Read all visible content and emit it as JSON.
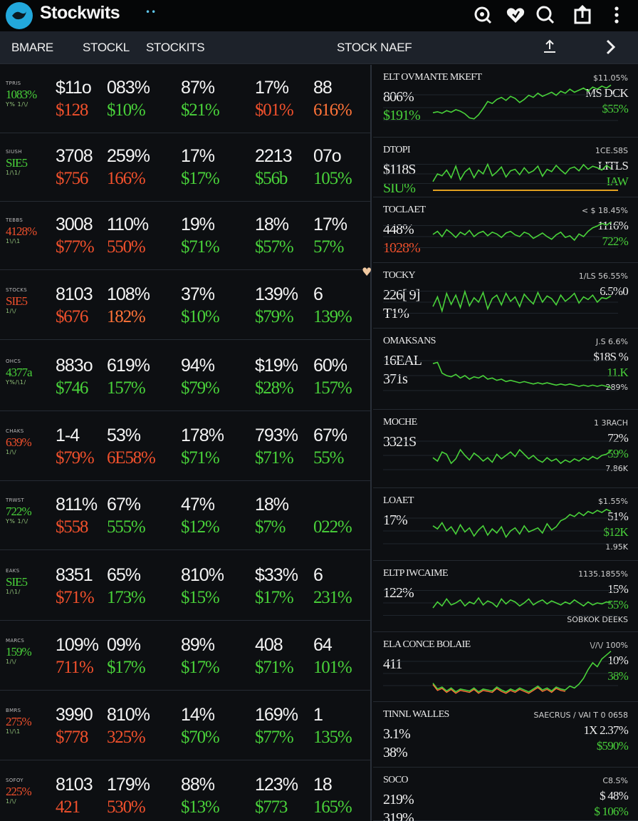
{
  "app": {
    "title": "Stockwits",
    "dots": "••"
  },
  "colors": {
    "positive": "#49d23a",
    "negative": "#f0502c",
    "orange": "#ff7338",
    "accent": "#22a8dc",
    "background": "#0d0f12"
  },
  "top_icons": [
    "search-refresh-icon",
    "heart-icon",
    "search-icon",
    "share-icon",
    "more-vertical-icon"
  ],
  "nav": {
    "tabs": [
      "BMARE",
      "STOCKL",
      "STOCKITS",
      "STOCK NAEF"
    ],
    "icons": [
      "upload-icon",
      "chevron-right-icon"
    ]
  },
  "grid": {
    "rows": [
      {
        "name": "TPRIS",
        "chg": "1083%",
        "chg_tone": "pos",
        "bars": "Y% 1/\\/",
        "cells": [
          {
            "v1": "$11o",
            "v2": "$128",
            "tone": "neg"
          },
          {
            "v1": "083%",
            "v2": "$10%",
            "tone": "pos"
          },
          {
            "v1": "87%",
            "v2": "$21%",
            "tone": "pos"
          },
          {
            "v1": "17%",
            "v2": "$01%",
            "tone": "neg"
          },
          {
            "v1": "88",
            "v2": "616%",
            "tone": "orange"
          }
        ]
      },
      {
        "name": "SIUSH",
        "chg": "SIE5",
        "chg_tone": "pos",
        "bars": "1/\\1/",
        "cells": [
          {
            "v1": "3708",
            "v2": "$756",
            "tone": "neg"
          },
          {
            "v1": "259%",
            "v2": "166%",
            "tone": "neg"
          },
          {
            "v1": "17%",
            "v2": "$17%",
            "tone": "pos"
          },
          {
            "v1": "2213",
            "v2": "$56b",
            "tone": "pos"
          },
          {
            "v1": "07o",
            "v2": "105%",
            "tone": "pos"
          }
        ]
      },
      {
        "name": "TEBBS",
        "chg": "4128%",
        "chg_tone": "neg",
        "bars": "1\\/\\1",
        "cells": [
          {
            "v1": "3008",
            "v2": "$77%",
            "tone": "neg"
          },
          {
            "v1": "110%",
            "v2": "550%",
            "tone": "neg"
          },
          {
            "v1": "19%",
            "v2": "$71%",
            "tone": "pos"
          },
          {
            "v1": "18%",
            "v2": "$57%",
            "tone": "pos"
          },
          {
            "v1": "17%",
            "v2": "57%",
            "tone": "pos"
          }
        ]
      },
      {
        "name": "STOCKS",
        "chg": "SIE5",
        "chg_tone": "neg",
        "bars": "1/\\/",
        "cells": [
          {
            "v1": "8103",
            "v2": "$676",
            "tone": "neg"
          },
          {
            "v1": "108%",
            "v2": "182%",
            "tone": "orange"
          },
          {
            "v1": "37%",
            "v2": "$10%",
            "tone": "pos"
          },
          {
            "v1": "139%",
            "v2": "$79%",
            "tone": "pos"
          },
          {
            "v1": "6",
            "v2": "139%",
            "tone": "pos"
          }
        ]
      },
      {
        "name": "OHCS",
        "chg": "4377a",
        "chg_tone": "pos",
        "bars": "Y%/\\1/",
        "cells": [
          {
            "v1": "883o",
            "v2": "$746",
            "tone": "pos"
          },
          {
            "v1": "619%",
            "v2": "157%",
            "tone": "pos"
          },
          {
            "v1": "94%",
            "v2": "$79%",
            "tone": "pos"
          },
          {
            "v1": "$19%",
            "v2": "$28%",
            "tone": "pos"
          },
          {
            "v1": "60%",
            "v2": "157%",
            "tone": "pos"
          }
        ]
      },
      {
        "name": "CHAKS",
        "chg": "639%",
        "chg_tone": "neg",
        "bars": "1/\\/",
        "cells": [
          {
            "v1": "1-4",
            "v2": "$79%",
            "tone": "neg"
          },
          {
            "v1": "53%",
            "v2": "6E58%",
            "tone": "neg"
          },
          {
            "v1": "178%",
            "v2": "$71%",
            "tone": "pos"
          },
          {
            "v1": "793%",
            "v2": "$71%",
            "tone": "pos"
          },
          {
            "v1": "67%",
            "v2": "55%",
            "tone": "pos"
          }
        ]
      },
      {
        "name": "TRWST",
        "chg": "722%",
        "chg_tone": "pos",
        "bars": "Y% 1/\\/",
        "cells": [
          {
            "v1": "811%",
            "v2": "$558",
            "tone": "neg"
          },
          {
            "v1": "67%",
            "v2": "555%",
            "tone": "pos"
          },
          {
            "v1": "47%",
            "v2": "$12%",
            "tone": "pos"
          },
          {
            "v1": "18%",
            "v2": "$7%",
            "tone": "pos"
          },
          {
            "v1": "",
            "v2": "022%",
            "tone": "pos"
          }
        ]
      },
      {
        "name": "EAKS",
        "chg": "SIE5",
        "chg_tone": "pos",
        "bars": "1/\\1/",
        "cells": [
          {
            "v1": "8351",
            "v2": "$71%",
            "tone": "neg"
          },
          {
            "v1": "65%",
            "v2": "173%",
            "tone": "pos"
          },
          {
            "v1": "810%",
            "v2": "$15%",
            "tone": "pos"
          },
          {
            "v1": "$33%",
            "v2": "$17%",
            "tone": "pos"
          },
          {
            "v1": "6",
            "v2": "231%",
            "tone": "pos"
          }
        ]
      },
      {
        "name": "MARCS",
        "chg": "159%",
        "chg_tone": "pos",
        "bars": "1/\\/",
        "cells": [
          {
            "v1": "109%",
            "v2": "711%",
            "tone": "neg"
          },
          {
            "v1": "09%",
            "v2": "$17%",
            "tone": "pos"
          },
          {
            "v1": "89%",
            "v2": "$17%",
            "tone": "pos"
          },
          {
            "v1": "408",
            "v2": "$71%",
            "tone": "pos"
          },
          {
            "v1": "64",
            "v2": "101%",
            "tone": "pos"
          }
        ]
      },
      {
        "name": "BMRS",
        "chg": "275%",
        "chg_tone": "neg",
        "bars": "1\\/\\1",
        "cells": [
          {
            "v1": "3990",
            "v2": "$778",
            "tone": "neg"
          },
          {
            "v1": "810%",
            "v2": "325%",
            "tone": "neg"
          },
          {
            "v1": "14%",
            "v2": "$70%",
            "tone": "pos"
          },
          {
            "v1": "169%",
            "v2": "$77%",
            "tone": "pos"
          },
          {
            "v1": "1",
            "v2": "135%",
            "tone": "pos"
          }
        ]
      },
      {
        "name": "SOFOY",
        "chg": "225%",
        "chg_tone": "neg",
        "bars": "1/\\/",
        "cells": [
          {
            "v1": "8103",
            "v2": "421",
            "tone": "neg"
          },
          {
            "v1": "179%",
            "v2": "530%",
            "tone": "neg"
          },
          {
            "v1": "88%",
            "v2": "$13%",
            "tone": "pos"
          },
          {
            "v1": "123%",
            "v2": "$773",
            "tone": "pos"
          },
          {
            "v1": "18",
            "v2": "165%",
            "tone": "pos"
          }
        ]
      }
    ]
  },
  "charts": [
    {
      "title": "ELT OVMANTE MKEFT",
      "a": "806%",
      "a_tone": "white",
      "b": "$191%",
      "b_tone": "pos",
      "r1": "$11.05%",
      "r2": "MS DCK",
      "r3": "$55%",
      "r4": "",
      "line": "pos",
      "series": [
        40,
        42,
        39,
        44,
        41,
        46,
        43,
        38,
        30,
        28,
        36,
        48,
        62,
        58,
        66,
        70,
        64,
        72,
        68,
        60,
        66,
        74,
        70,
        78,
        72,
        76,
        80,
        74,
        82,
        78,
        86,
        80,
        84,
        88,
        82,
        90,
        86,
        92,
        88,
        94
      ]
    },
    {
      "title": "DTOPI",
      "a": "$118S",
      "a_tone": "white",
      "b": "SIU%",
      "b_tone": "pos",
      "r1": "1CE.S8S",
      "r2": "LITLS",
      "r3": "IAW",
      "r4": "",
      "line": "pos",
      "series": [
        30,
        50,
        45,
        60,
        40,
        70,
        35,
        55,
        65,
        40,
        60,
        50,
        75,
        45,
        55,
        68,
        42,
        58,
        62,
        48,
        66,
        52,
        58,
        70,
        44,
        62,
        56,
        72,
        60,
        50,
        64,
        68,
        58,
        74,
        62,
        70,
        66,
        60,
        72,
        64
      ]
    },
    {
      "title": "TOCLAET",
      "a": "448%",
      "a_tone": "white",
      "b": "1028%",
      "b_tone": "neg",
      "r1": "< $ 18.45%",
      "r2": "1116%",
      "r3": "722%",
      "r4": "",
      "line": "pos",
      "series": [
        55,
        62,
        50,
        66,
        58,
        48,
        60,
        54,
        64,
        50,
        58,
        62,
        52,
        60,
        56,
        48,
        58,
        62,
        54,
        50,
        60,
        56,
        46,
        52,
        58,
        50,
        44,
        54,
        60,
        48,
        52,
        42,
        56,
        50,
        62,
        70,
        74,
        80,
        76,
        82
      ]
    },
    {
      "title": "TOCKY",
      "a": "226[ 9]",
      "a_tone": "white",
      "b": "T1%",
      "b_tone": "white",
      "r1": "1/LS 56.55%",
      "r2": "6.5%0",
      "r3": "",
      "r4": "",
      "line": "pos",
      "series": [
        40,
        62,
        30,
        70,
        45,
        66,
        38,
        74,
        42,
        60,
        50,
        72,
        35,
        58,
        66,
        44,
        70,
        52,
        62,
        40,
        68,
        56,
        46,
        72,
        50,
        64,
        58,
        44,
        66,
        52,
        60,
        70,
        48,
        62,
        56,
        66,
        50,
        60,
        58,
        64
      ]
    },
    {
      "title": "OMAKSANS",
      "a": "16EAL",
      "a_tone": "white",
      "b": "371s",
      "b_tone": "white",
      "r1": "J.S 6.6%",
      "r2": "$18S %",
      "r3": "11.K",
      "r4": "289%",
      "line": "pos",
      "series": [
        70,
        72,
        54,
        50,
        48,
        52,
        46,
        50,
        44,
        48,
        46,
        50,
        44,
        46,
        42,
        44,
        40,
        42,
        40,
        38,
        40,
        38,
        36,
        38,
        36,
        38,
        36,
        34,
        36,
        34,
        36,
        34,
        32,
        34,
        32,
        34,
        32,
        34,
        32,
        30
      ]
    },
    {
      "title": "MOCHE",
      "a": "3321S",
      "a_tone": "white",
      "b": "",
      "b_tone": "pos",
      "r1": "1 3RACH",
      "r2": "72%",
      "r3": "59%",
      "r4": "7.86K",
      "line": "pos",
      "series": [
        46,
        40,
        56,
        52,
        36,
        44,
        60,
        50,
        42,
        54,
        48,
        40,
        46,
        38,
        52,
        44,
        50,
        56,
        48,
        60,
        52,
        44,
        50,
        42,
        38,
        46,
        40,
        44,
        36,
        42,
        38,
        44,
        40,
        46,
        42,
        48,
        44,
        50,
        52,
        58
      ]
    },
    {
      "title": "LOAET",
      "a": "17%",
      "a_tone": "white",
      "b": "",
      "b_tone": "pos",
      "r1": "$1.55%",
      "r2": "51%",
      "r3": "$12K",
      "r4": "1.95K",
      "line": "pos",
      "series": [
        60,
        54,
        66,
        50,
        58,
        44,
        62,
        48,
        56,
        40,
        52,
        60,
        42,
        54,
        46,
        58,
        38,
        50,
        56,
        44,
        60,
        48,
        52,
        56,
        46,
        64,
        52,
        58,
        70,
        74,
        82,
        78,
        86,
        80,
        88,
        84,
        90,
        86,
        92,
        88
      ]
    },
    {
      "title": "ELTP IWCAIME",
      "a": "122%",
      "a_tone": "white",
      "b": "",
      "b_tone": "pos",
      "r1": "1135.1855%",
      "r2": "15%",
      "r3": "55%",
      "r4": "SOBKOK DEEKS",
      "line": "pos",
      "series": [
        40,
        52,
        44,
        58,
        46,
        50,
        56,
        44,
        52,
        48,
        60,
        46,
        54,
        50,
        42,
        58,
        48,
        56,
        52,
        44,
        50,
        58,
        46,
        52,
        56,
        48,
        54,
        50,
        46,
        52,
        48,
        56,
        50,
        44,
        52,
        46,
        50,
        48,
        52,
        50
      ]
    },
    {
      "title": "ELA CONCE BOLAIE",
      "a": "411",
      "a_tone": "white",
      "b": "",
      "b_tone": "pos",
      "r1": "\\//\\/ 100%",
      "r2": "10%",
      "r3": "38%",
      "r4": "",
      "line": "mixed",
      "series": [
        30,
        18,
        22,
        14,
        20,
        12,
        18,
        16,
        14,
        20,
        12,
        18,
        16,
        14,
        22,
        16,
        12,
        18,
        14,
        20,
        16,
        12,
        18,
        24,
        16,
        20,
        14,
        22,
        18,
        16,
        24,
        20,
        28,
        40,
        58,
        72,
        64,
        80,
        88,
        96
      ]
    },
    {
      "title": "TINNL WALLES",
      "a": "3.1%",
      "a_tone": "white",
      "b": "38%",
      "b_tone": "white",
      "r1": "SAECRUS / VAI T 0 0658",
      "r2": "1X 2.37%",
      "r3": "$590%",
      "r4": "",
      "line": "none",
      "series": []
    },
    {
      "title": "SOCO",
      "a": "219%",
      "a_tone": "white",
      "b": "319%",
      "b_tone": "white",
      "r1": "C8.S%",
      "r2": "$ 48%",
      "r3": "$ 106%",
      "r4": "",
      "line": "none",
      "series": []
    }
  ]
}
